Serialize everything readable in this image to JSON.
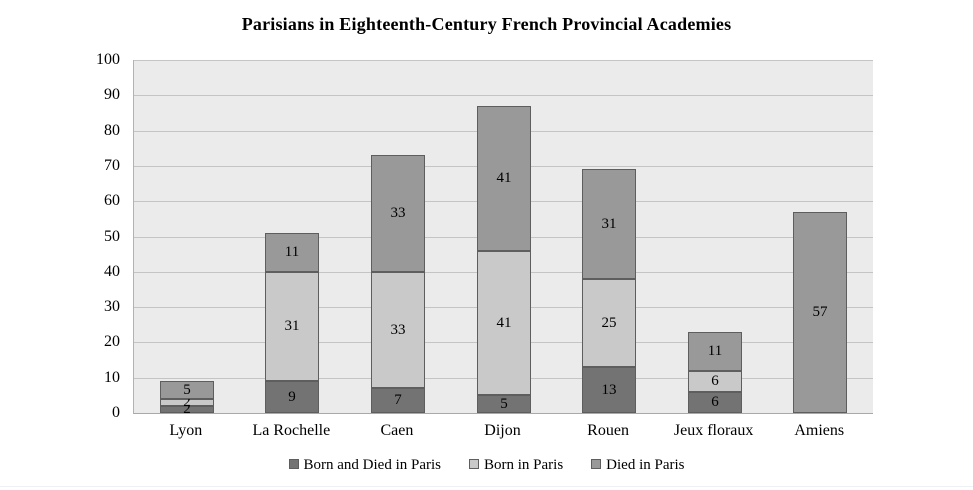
{
  "title": "Parisians in Eighteenth-Century French Provincial Academies",
  "chart_data": {
    "type": "bar",
    "stacked": true,
    "title": "Parisians in Eighteenth-Century French Provincial Academies",
    "categories": [
      "Lyon",
      "La Rochelle",
      "Caen",
      "Dijon",
      "Rouen",
      "Jeux floraux",
      "Amiens"
    ],
    "series": [
      {
        "name": "Born and Died in Paris",
        "color": "#737373",
        "values": [
          2,
          9,
          7,
          5,
          13,
          6,
          0
        ]
      },
      {
        "name": "Born in Paris",
        "color": "#c9c9c9",
        "values": [
          2,
          31,
          33,
          41,
          25,
          6,
          0
        ]
      },
      {
        "name": "Died in Paris",
        "color": "#999999",
        "values": [
          5,
          11,
          33,
          41,
          31,
          11,
          57
        ]
      }
    ],
    "totals": [
      9,
      51,
      73,
      87,
      69,
      23,
      57
    ],
    "xlabel": "",
    "ylabel": "",
    "ylim": [
      0,
      100
    ],
    "yticks": [
      0,
      10,
      20,
      30,
      40,
      50,
      60,
      70,
      80,
      90,
      100
    ],
    "grid": true,
    "bar_labels": true,
    "legend_position": "bottom"
  },
  "style": {
    "plot_bg": "#ebebeb",
    "gridline": "#c4c4c4",
    "axis_line": "#aaaaaa",
    "bar_border": "#5e5e5e",
    "text": "#000000"
  }
}
